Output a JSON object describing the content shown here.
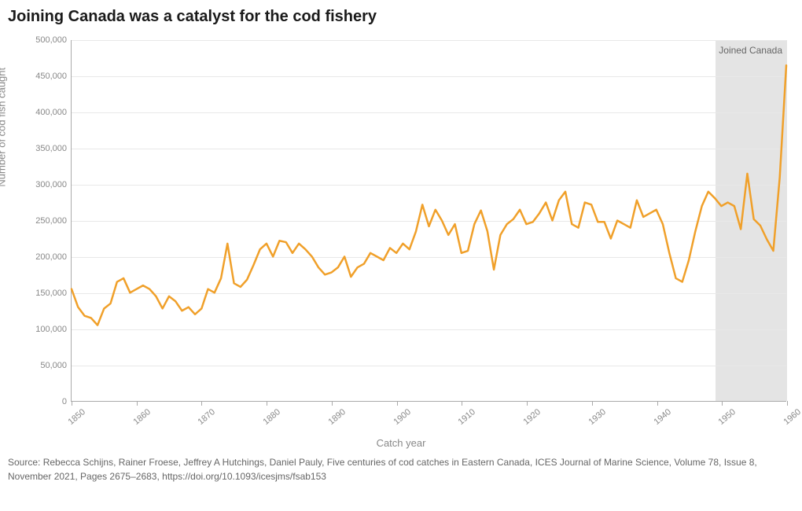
{
  "chart": {
    "type": "line",
    "title": "Joining Canada was a catalyst for the cod fishery",
    "y_label": "Number of cod fish caught",
    "x_label": "Catch year",
    "source": "Source: Rebecca Schijns, Rainer Froese, Jeffrey A Hutchings, Daniel Pauly, Five centuries of cod catches in Eastern Canada, ICES Journal of Marine Science, Volume 78, Issue 8, November 2021, Pages 2675–2683, https://doi.org/10.1093/icesjms/fsab153",
    "xlim": [
      1850,
      1960
    ],
    "ylim": [
      0,
      500000
    ],
    "xtick_step": 10,
    "ytick_step": 50000,
    "line_color": "#f0a02a",
    "line_width": 2.5,
    "background_color": "#ffffff",
    "grid_color": "#e8e8e8",
    "axis_color": "#aaaaaa",
    "label_color": "#888888",
    "title_color": "#1a1a1a",
    "title_fontsize": 20,
    "tick_fontsize": 11,
    "label_fontsize": 13,
    "xtick_rotation": -40,
    "shaded_region": {
      "x_start": 1949,
      "x_end": 1960,
      "label": "Joined Canada",
      "fill": "#e4e4e4"
    },
    "years": [
      1850,
      1851,
      1852,
      1853,
      1854,
      1855,
      1856,
      1857,
      1858,
      1859,
      1860,
      1861,
      1862,
      1863,
      1864,
      1865,
      1866,
      1867,
      1868,
      1869,
      1870,
      1871,
      1872,
      1873,
      1874,
      1875,
      1876,
      1877,
      1878,
      1879,
      1880,
      1881,
      1882,
      1883,
      1884,
      1885,
      1886,
      1887,
      1888,
      1889,
      1890,
      1891,
      1892,
      1893,
      1894,
      1895,
      1896,
      1897,
      1898,
      1899,
      1900,
      1901,
      1902,
      1903,
      1904,
      1905,
      1906,
      1907,
      1908,
      1909,
      1910,
      1911,
      1912,
      1913,
      1914,
      1915,
      1916,
      1917,
      1918,
      1919,
      1920,
      1921,
      1922,
      1923,
      1924,
      1925,
      1926,
      1927,
      1928,
      1929,
      1930,
      1931,
      1932,
      1933,
      1934,
      1935,
      1936,
      1937,
      1938,
      1939,
      1940,
      1941,
      1942,
      1943,
      1944,
      1945,
      1946,
      1947,
      1948,
      1949,
      1950,
      1951,
      1952,
      1953,
      1954,
      1955,
      1956,
      1957,
      1958,
      1959,
      1960
    ],
    "values": [
      155000,
      130000,
      118000,
      115000,
      105000,
      128000,
      135000,
      165000,
      170000,
      150000,
      155000,
      160000,
      155000,
      145000,
      128000,
      145000,
      138000,
      125000,
      130000,
      120000,
      128000,
      155000,
      150000,
      170000,
      218000,
      163000,
      158000,
      168000,
      188000,
      210000,
      218000,
      200000,
      222000,
      220000,
      205000,
      218000,
      210000,
      200000,
      185000,
      175000,
      178000,
      185000,
      200000,
      172000,
      185000,
      190000,
      205000,
      200000,
      195000,
      212000,
      205000,
      218000,
      210000,
      235000,
      272000,
      242000,
      265000,
      250000,
      230000,
      245000,
      205000,
      208000,
      245000,
      264000,
      235000,
      182000,
      230000,
      245000,
      252000,
      265000,
      245000,
      248000,
      260000,
      275000,
      250000,
      278000,
      290000,
      245000,
      240000,
      275000,
      272000,
      248000,
      248000,
      225000,
      250000,
      245000,
      240000,
      278000,
      255000,
      260000,
      265000,
      245000,
      205000,
      170000,
      165000,
      195000,
      235000,
      270000,
      290000,
      281000,
      270000,
      275000,
      270000,
      238000,
      315000,
      252000,
      243000,
      224000,
      208000,
      310000,
      465000
    ]
  }
}
